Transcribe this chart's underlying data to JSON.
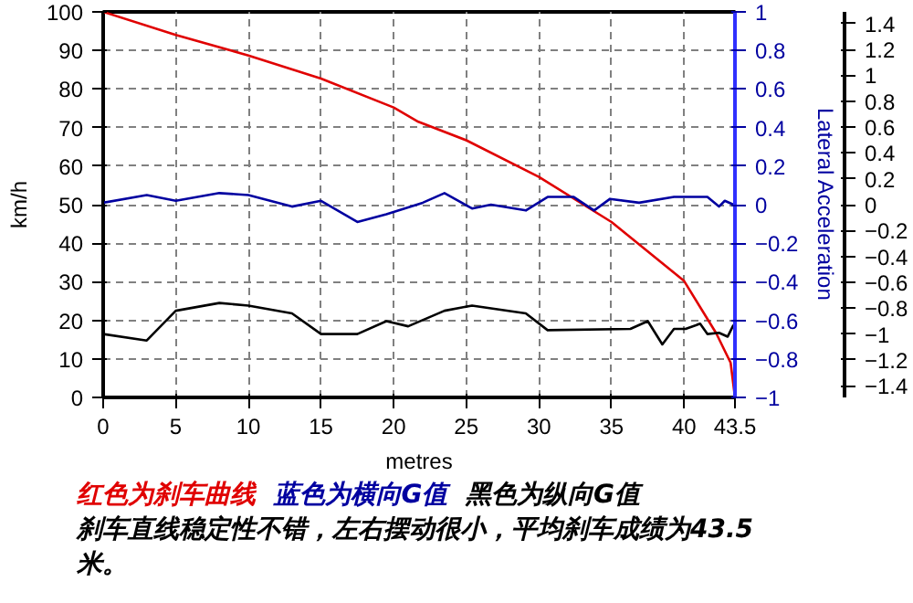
{
  "chart_data": {
    "type": "line",
    "xlabel": "metres",
    "ylabel": "km/h",
    "y2label": "Lateral Acceleration",
    "xlim": [
      0,
      43.5
    ],
    "xticks": [
      0,
      5,
      10,
      15,
      20,
      25,
      30,
      35,
      40,
      {
        "value": 43.5,
        "label": "43.5"
      }
    ],
    "ylim": [
      0,
      100
    ],
    "yticks": [
      0,
      10,
      20,
      30,
      40,
      50,
      60,
      70,
      80,
      90,
      100
    ],
    "y2lim": [
      -1,
      1
    ],
    "y2ticks": [
      -1,
      -0.8,
      -0.6,
      -0.4,
      -0.2,
      0,
      0.2,
      0.4,
      0.6,
      0.8,
      1
    ],
    "y3lim": [
      -1.49,
      1.49
    ],
    "y3ticks": [
      -1.4,
      -1.2,
      -1,
      -0.8,
      -0.6,
      -0.4,
      -0.2,
      0,
      0.2,
      0.4,
      0.6,
      0.8,
      1,
      1.2,
      1.4
    ],
    "grid": true,
    "series": [
      {
        "color": "#e00000",
        "x": [
          0,
          5,
          10,
          15,
          20,
          21.7,
          25,
          30,
          35,
          40,
          42.2,
          43.2,
          43.5
        ],
        "values": [
          100,
          94,
          88.7,
          82.7,
          75.2,
          71.5,
          66.7,
          57.2,
          45.5,
          30.2,
          16.7,
          9,
          0
        ]
      },
      {
        "color": "#0000a0",
        "axis": "y2",
        "x": [
          0,
          3,
          5,
          8,
          10,
          13,
          15,
          17.5,
          19.5,
          22,
          23.5,
          25.4,
          26.7,
          29.1,
          30.6,
          32.4,
          33.8,
          34.9,
          36.9,
          39.3,
          41.6,
          42.4,
          42.8,
          43.4
        ],
        "values": [
          0.01,
          0.05,
          0.02,
          0.06,
          0.05,
          -0.01,
          0.02,
          -0.09,
          -0.05,
          0.01,
          0.06,
          -0.02,
          0,
          -0.03,
          0.04,
          0.04,
          -0.03,
          0.03,
          0.01,
          0.04,
          0.04,
          -0.01,
          0.02,
          0
        ]
      },
      {
        "color": "#000000",
        "axis": "y3",
        "x": [
          0,
          3,
          5,
          8,
          10,
          13,
          15,
          17.5,
          19.5,
          21,
          23.5,
          25.4,
          29.1,
          30.6,
          36.3,
          37.5,
          38.5,
          39.3,
          40.1,
          41.1,
          41.6,
          42.4,
          43,
          43.4
        ],
        "values": [
          -1,
          -1.05,
          -0.82,
          -0.76,
          -0.78,
          -0.84,
          -1,
          -1,
          -0.9,
          -0.94,
          -0.82,
          -0.78,
          -0.84,
          -0.97,
          -0.96,
          -0.9,
          -1.08,
          -0.96,
          -0.96,
          -0.92,
          -1,
          -0.99,
          -1.02,
          -0.93
        ]
      }
    ],
    "annotations": [
      "红色为刹车曲线",
      "蓝色为横向G值",
      "黑色为纵向G值",
      "刹车直线稳定性不错，左右摆动很小，平均刹车成绩为43.5米。"
    ]
  }
}
